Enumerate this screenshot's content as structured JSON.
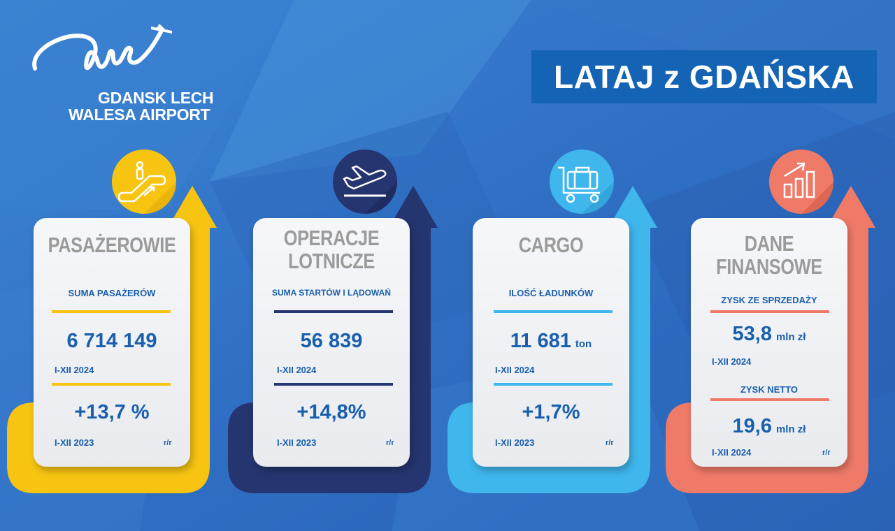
{
  "brand": {
    "logo_line1": "GDANSK LECH",
    "logo_line2": "WALESA AIRPORT"
  },
  "banner": {
    "title": "LATAJ z GDAŃSKA"
  },
  "colors": {
    "background": "#2f6fc4",
    "yellow": "#f7c511",
    "navy": "#253570",
    "light_blue": "#3fb6ec",
    "coral": "#ef7a68",
    "text_blue": "#1a5fae",
    "title_grey": "#9b9b9b"
  },
  "cards": [
    {
      "icon": "escalator-icon",
      "title": "PASAŻEROWIE",
      "label": "SUMA PASAŻERÓW",
      "value": "6 714 149",
      "period": "I-XII 2024",
      "change": "+13,7 %",
      "change_period": "I-XII 2023",
      "rr": "r/r"
    },
    {
      "icon": "plane-takeoff-icon",
      "title_line1": "OPERACJE",
      "title_line2": "LOTNICZE",
      "label": "SUMA STARTÓW I LĄDOWAŃ",
      "value": "56 839",
      "period": "I-XII 2024",
      "change": "+14,8%",
      "change_period": "I-XII 2023",
      "rr": "r/r"
    },
    {
      "icon": "luggage-cart-icon",
      "title": "CARGO",
      "label": "ILOŚĆ ŁADUNKÓW",
      "value": "11 681",
      "unit": "ton",
      "period": "I-XII 2024",
      "change": "+1,7%",
      "change_period": "I-XII 2023",
      "rr": "r/r"
    },
    {
      "icon": "growth-chart-icon",
      "title_line1": "DANE",
      "title_line2": "FINANSOWE",
      "label1": "ZYSK ZE SPRZEDAŻY",
      "value1": "53,8",
      "unit1": "mln zł",
      "period1": "I-XII 2024",
      "label2": "ZYSK NETTO",
      "value2": "19,6",
      "unit2": "mln zł",
      "period2": "I-XII 2024",
      "rr": "r/r"
    }
  ]
}
